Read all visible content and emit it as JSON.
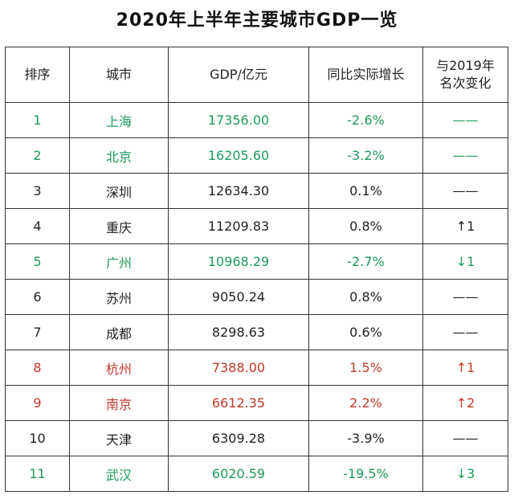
{
  "title": "2020年上半年主要城市GDP一览",
  "table": {
    "headers": [
      [
        "排序"
      ],
      [
        "城市"
      ],
      [
        "GDP/亿元"
      ],
      [
        "同比实际增长"
      ],
      [
        "与2019年",
        "名次变化"
      ]
    ],
    "rows": [
      [
        "1",
        "上海",
        "17356.00",
        "-2.6%",
        "——"
      ],
      [
        "2",
        "北京",
        "16205.60",
        "-3.2%",
        "——"
      ],
      [
        "3",
        "深圳",
        "12634.30",
        "0.1%",
        "——"
      ],
      [
        "4",
        "重庆",
        "11209.83",
        "0.8%",
        "↑1"
      ],
      [
        "5",
        "广州",
        "10968.29",
        "-2.7%",
        "↓1"
      ],
      [
        "6",
        "苏州",
        "9050.24",
        "0.8%",
        "——"
      ],
      [
        "7",
        "成都",
        "8298.63",
        "0.6%",
        "——"
      ],
      [
        "8",
        "杭州",
        "7388.00",
        "1.5%",
        "↑1"
      ],
      [
        "9",
        "南京",
        "6612.35",
        "2.2%",
        "↑2"
      ],
      [
        "10",
        "天津",
        "6309.28",
        "-3.9%",
        "——"
      ],
      [
        "11",
        "武汉",
        "6020.59",
        "-19.5%",
        "↓3"
      ]
    ],
    "row_colors": [
      "#1e9a5a",
      "#1e9a5a",
      "#222222",
      "#222222",
      "#1e9a5a",
      "#222222",
      "#222222",
      "#c0392b",
      "#c0392b",
      "#222222",
      "#1e9a5a"
    ]
  }
}
